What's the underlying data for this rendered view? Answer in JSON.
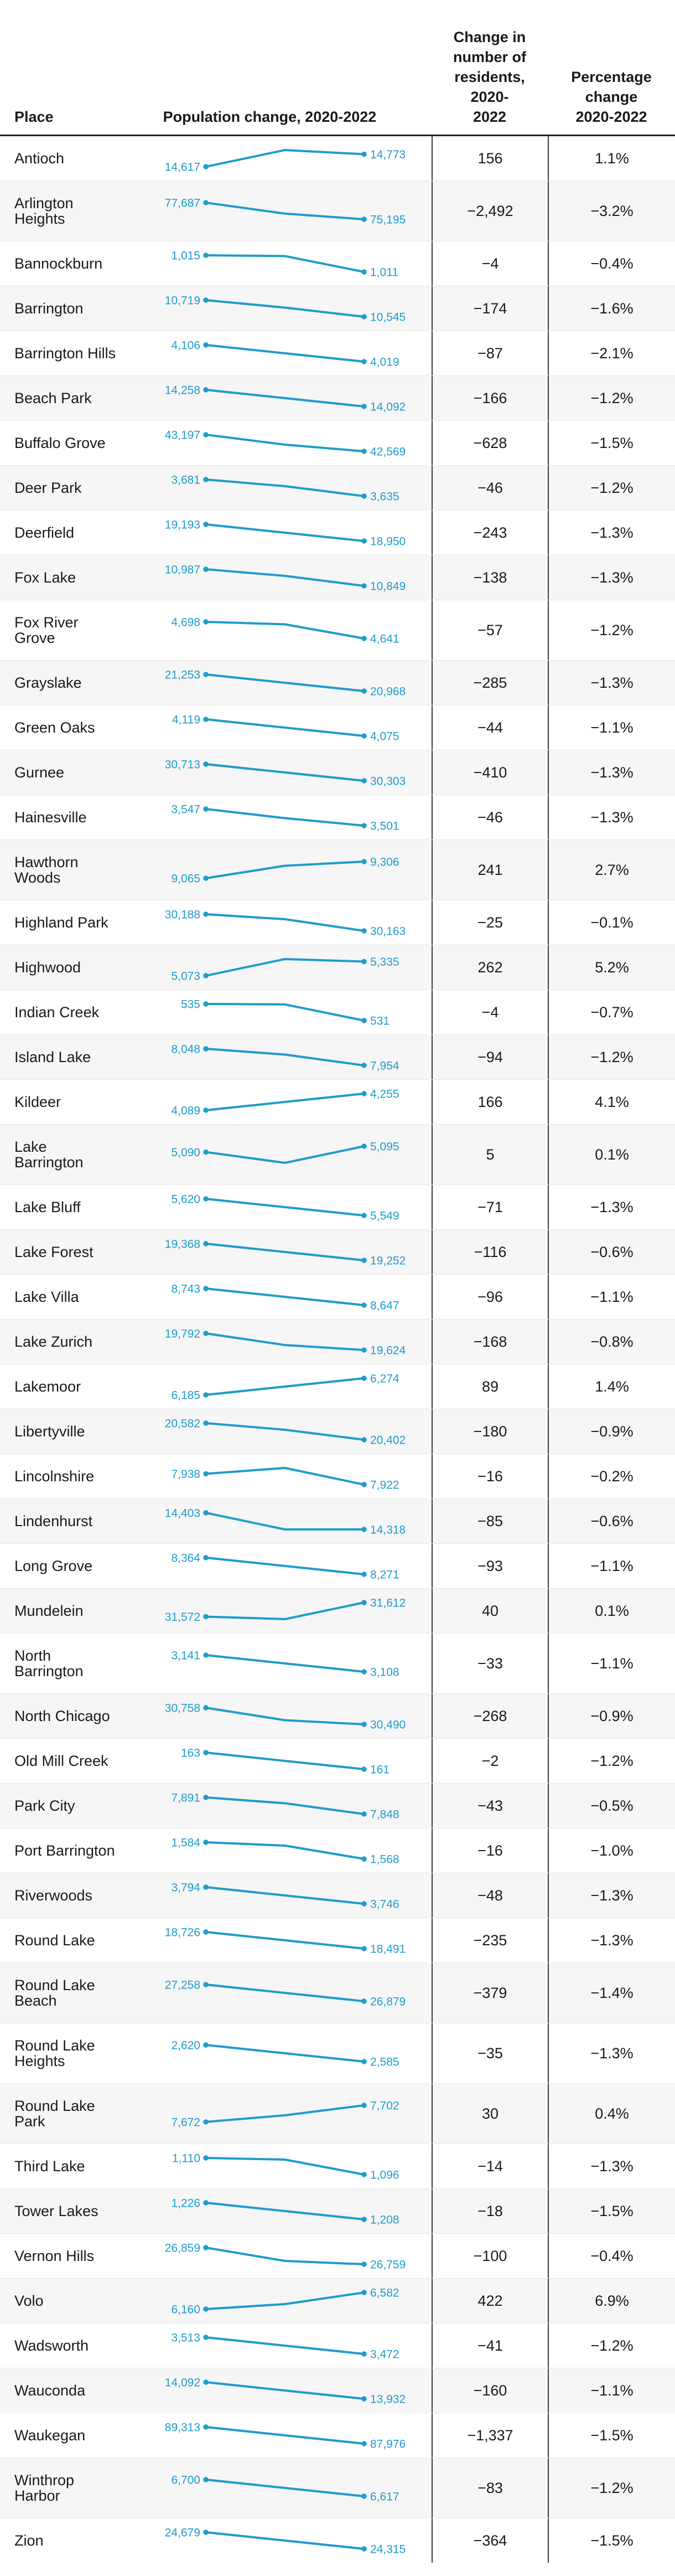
{
  "header": {
    "col_place": "Place",
    "col_chart": "Population change, 2020-2022",
    "col_change": "Change in\nnumber of\nresidents,\n2020-\n2022",
    "col_pct": "Percentage\nchange\n2020-2022"
  },
  "colors": {
    "accent": "#1e9ccd",
    "zebra_row": "#f6f6f6",
    "row_separator": "#e8e8e8",
    "column_divider": "#3a3a3a",
    "header_border": "#222222",
    "text": "#1a1a1a"
  },
  "chart_data": {
    "type": "table",
    "columns": [
      "Place",
      "Population change, 2020-2022",
      "Change in number of residents, 2020-2022",
      "Percentage change 2020-2022"
    ],
    "sparkline_x": [
      "2020",
      "2021",
      "2022"
    ],
    "sparkline_note": "spark_shape values are normalized vertical positions of the 3 line points (0 = top of band, 1 = bottom); only 2020 and 2022 endpoints are labeled",
    "rows": [
      {
        "place": "Antioch",
        "pop_2020": "14,617",
        "pop_2022": "14,773",
        "change": "156",
        "pct": "1.1%",
        "spark_shape": [
          1,
          0,
          0.25
        ]
      },
      {
        "place": "Arlington\nHeights",
        "pop_2020": "77,687",
        "pop_2022": "75,195",
        "change": "−2,492",
        "pct": "−3.2%",
        "spark_shape": [
          0,
          0.66,
          1
        ]
      },
      {
        "place": "Bannockburn",
        "pop_2020": "1,015",
        "pop_2022": "1,011",
        "change": "−4",
        "pct": "−0.4%",
        "spark_shape": [
          0,
          0.05,
          1
        ]
      },
      {
        "place": "Barrington",
        "pop_2020": "10,719",
        "pop_2022": "10,545",
        "change": "−174",
        "pct": "−1.6%",
        "spark_shape": [
          0,
          0.45,
          1
        ]
      },
      {
        "place": "Barrington Hills",
        "pop_2020": "4,106",
        "pop_2022": "4,019",
        "change": "−87",
        "pct": "−2.1%",
        "spark_shape": [
          0,
          0.5,
          1
        ]
      },
      {
        "place": "Beach Park",
        "pop_2020": "14,258",
        "pop_2022": "14,092",
        "change": "−166",
        "pct": "−1.2%",
        "spark_shape": [
          0,
          0.5,
          1
        ]
      },
      {
        "place": "Buffalo Grove",
        "pop_2020": "43,197",
        "pop_2022": "42,569",
        "change": "−628",
        "pct": "−1.5%",
        "spark_shape": [
          0,
          0.6,
          1
        ]
      },
      {
        "place": "Deer Park",
        "pop_2020": "3,681",
        "pop_2022": "3,635",
        "change": "−46",
        "pct": "−1.2%",
        "spark_shape": [
          0,
          0.4,
          1
        ]
      },
      {
        "place": "Deerfield",
        "pop_2020": "19,193",
        "pop_2022": "18,950",
        "change": "−243",
        "pct": "−1.3%",
        "spark_shape": [
          0,
          0.5,
          1
        ]
      },
      {
        "place": "Fox Lake",
        "pop_2020": "10,987",
        "pop_2022": "10,849",
        "change": "−138",
        "pct": "−1.3%",
        "spark_shape": [
          0,
          0.4,
          1
        ]
      },
      {
        "place": "Fox River\nGrove",
        "pop_2020": "4,698",
        "pop_2022": "4,641",
        "change": "−57",
        "pct": "−1.2%",
        "spark_shape": [
          0,
          0.15,
          1
        ]
      },
      {
        "place": "Grayslake",
        "pop_2020": "21,253",
        "pop_2022": "20,968",
        "change": "−285",
        "pct": "−1.3%",
        "spark_shape": [
          0,
          0.5,
          1
        ]
      },
      {
        "place": "Green Oaks",
        "pop_2020": "4,119",
        "pop_2022": "4,075",
        "change": "−44",
        "pct": "−1.1%",
        "spark_shape": [
          0,
          0.5,
          1
        ]
      },
      {
        "place": "Gurnee",
        "pop_2020": "30,713",
        "pop_2022": "30,303",
        "change": "−410",
        "pct": "−1.3%",
        "spark_shape": [
          0,
          0.5,
          1
        ]
      },
      {
        "place": "Hainesville",
        "pop_2020": "3,547",
        "pop_2022": "3,501",
        "change": "−46",
        "pct": "−1.3%",
        "spark_shape": [
          0,
          0.55,
          1
        ]
      },
      {
        "place": "Hawthorn\nWoods",
        "pop_2020": "9,065",
        "pop_2022": "9,306",
        "change": "241",
        "pct": "2.7%",
        "spark_shape": [
          1,
          0.25,
          0
        ]
      },
      {
        "place": "Highland Park",
        "pop_2020": "30,188",
        "pop_2022": "30,163",
        "change": "−25",
        "pct": "−0.1%",
        "spark_shape": [
          0,
          0.3,
          1
        ]
      },
      {
        "place": "Highwood",
        "pop_2020": "5,073",
        "pop_2022": "5,335",
        "change": "262",
        "pct": "5.2%",
        "spark_shape": [
          1,
          0,
          0.15
        ]
      },
      {
        "place": "Indian Creek",
        "pop_2020": "535",
        "pop_2022": "531",
        "change": "−4",
        "pct": "−0.7%",
        "spark_shape": [
          0,
          0.03,
          1
        ]
      },
      {
        "place": "Island Lake",
        "pop_2020": "8,048",
        "pop_2022": "7,954",
        "change": "−94",
        "pct": "−1.2%",
        "spark_shape": [
          0,
          0.35,
          1
        ]
      },
      {
        "place": "Kildeer",
        "pop_2020": "4,089",
        "pop_2022": "4,255",
        "change": "166",
        "pct": "4.1%",
        "spark_shape": [
          1,
          0.5,
          0
        ]
      },
      {
        "place": "Lake\nBarrington",
        "pop_2020": "5,090",
        "pop_2022": "5,095",
        "change": "5",
        "pct": "0.1%",
        "spark_shape": [
          0.35,
          1,
          0
        ]
      },
      {
        "place": "Lake Bluff",
        "pop_2020": "5,620",
        "pop_2022": "5,549",
        "change": "−71",
        "pct": "−1.3%",
        "spark_shape": [
          0,
          0.5,
          1
        ]
      },
      {
        "place": "Lake Forest",
        "pop_2020": "19,368",
        "pop_2022": "19,252",
        "change": "−116",
        "pct": "−0.6%",
        "spark_shape": [
          0,
          0.5,
          1
        ]
      },
      {
        "place": "Lake Villa",
        "pop_2020": "8,743",
        "pop_2022": "8,647",
        "change": "−96",
        "pct": "−1.1%",
        "spark_shape": [
          0,
          0.5,
          1
        ]
      },
      {
        "place": "Lake Zurich",
        "pop_2020": "19,792",
        "pop_2022": "19,624",
        "change": "−168",
        "pct": "−0.8%",
        "spark_shape": [
          0,
          0.7,
          1
        ]
      },
      {
        "place": "Lakemoor",
        "pop_2020": "6,185",
        "pop_2022": "6,274",
        "change": "89",
        "pct": "1.4%",
        "spark_shape": [
          1,
          0.5,
          0
        ]
      },
      {
        "place": "Libertyville",
        "pop_2020": "20,582",
        "pop_2022": "20,402",
        "change": "−180",
        "pct": "−0.9%",
        "spark_shape": [
          0,
          0.4,
          1
        ]
      },
      {
        "place": "Lincolnshire",
        "pop_2020": "7,938",
        "pop_2022": "7,922",
        "change": "−16",
        "pct": "−0.2%",
        "spark_shape": [
          0.35,
          0,
          1
        ]
      },
      {
        "place": "Lindenhurst",
        "pop_2020": "14,403",
        "pop_2022": "14,318",
        "change": "−85",
        "pct": "−0.6%",
        "spark_shape": [
          0,
          1,
          1
        ]
      },
      {
        "place": "Long Grove",
        "pop_2020": "8,364",
        "pop_2022": "8,271",
        "change": "−93",
        "pct": "−1.1%",
        "spark_shape": [
          0,
          0.5,
          1
        ]
      },
      {
        "place": "Mundelein",
        "pop_2020": "31,572",
        "pop_2022": "31,612",
        "change": "40",
        "pct": "0.1%",
        "spark_shape": [
          0.85,
          1,
          0
        ]
      },
      {
        "place": "North\nBarrington",
        "pop_2020": "3,141",
        "pop_2022": "3,108",
        "change": "−33",
        "pct": "−1.1%",
        "spark_shape": [
          0,
          0.5,
          1
        ]
      },
      {
        "place": "North Chicago",
        "pop_2020": "30,758",
        "pop_2022": "30,490",
        "change": "−268",
        "pct": "−0.9%",
        "spark_shape": [
          0,
          0.75,
          1
        ]
      },
      {
        "place": "Old Mill Creek",
        "pop_2020": "163",
        "pop_2022": "161",
        "change": "−2",
        "pct": "−1.2%",
        "spark_shape": [
          0,
          0.5,
          1
        ]
      },
      {
        "place": "Park City",
        "pop_2020": "7,891",
        "pop_2022": "7,848",
        "change": "−43",
        "pct": "−0.5%",
        "spark_shape": [
          0,
          0.35,
          1
        ]
      },
      {
        "place": "Port Barrington",
        "pop_2020": "1,584",
        "pop_2022": "1,568",
        "change": "−16",
        "pct": "−1.0%",
        "spark_shape": [
          0,
          0.2,
          1
        ]
      },
      {
        "place": "Riverwoods",
        "pop_2020": "3,794",
        "pop_2022": "3,746",
        "change": "−48",
        "pct": "−1.3%",
        "spark_shape": [
          0,
          0.5,
          1
        ]
      },
      {
        "place": "Round Lake",
        "pop_2020": "18,726",
        "pop_2022": "18,491",
        "change": "−235",
        "pct": "−1.3%",
        "spark_shape": [
          0,
          0.5,
          1
        ]
      },
      {
        "place": "Round Lake\nBeach",
        "pop_2020": "27,258",
        "pop_2022": "26,879",
        "change": "−379",
        "pct": "−1.4%",
        "spark_shape": [
          0,
          0.5,
          1
        ]
      },
      {
        "place": "Round Lake\nHeights",
        "pop_2020": "2,620",
        "pop_2022": "2,585",
        "change": "−35",
        "pct": "−1.3%",
        "spark_shape": [
          0,
          0.5,
          1
        ]
      },
      {
        "place": "Round Lake\nPark",
        "pop_2020": "7,672",
        "pop_2022": "7,702",
        "change": "30",
        "pct": "0.4%",
        "spark_shape": [
          1,
          0.6,
          0
        ]
      },
      {
        "place": "Third Lake",
        "pop_2020": "1,110",
        "pop_2022": "1,096",
        "change": "−14",
        "pct": "−1.3%",
        "spark_shape": [
          0,
          0.1,
          1
        ]
      },
      {
        "place": "Tower Lakes",
        "pop_2020": "1,226",
        "pop_2022": "1,208",
        "change": "−18",
        "pct": "−1.5%",
        "spark_shape": [
          0,
          0.5,
          1
        ]
      },
      {
        "place": "Vernon Hills",
        "pop_2020": "26,859",
        "pop_2022": "26,759",
        "change": "−100",
        "pct": "−0.4%",
        "spark_shape": [
          0,
          0.8,
          1
        ]
      },
      {
        "place": "Volo",
        "pop_2020": "6,160",
        "pop_2022": "6,582",
        "change": "422",
        "pct": "6.9%",
        "spark_shape": [
          1,
          0.7,
          0
        ]
      },
      {
        "place": "Wadsworth",
        "pop_2020": "3,513",
        "pop_2022": "3,472",
        "change": "−41",
        "pct": "−1.2%",
        "spark_shape": [
          0,
          0.5,
          1
        ]
      },
      {
        "place": "Wauconda",
        "pop_2020": "14,092",
        "pop_2022": "13,932",
        "change": "−160",
        "pct": "−1.1%",
        "spark_shape": [
          0,
          0.5,
          1
        ]
      },
      {
        "place": "Waukegan",
        "pop_2020": "89,313",
        "pop_2022": "87,976",
        "change": "−1,337",
        "pct": "−1.5%",
        "spark_shape": [
          0,
          0.5,
          1
        ]
      },
      {
        "place": "Winthrop\nHarbor",
        "pop_2020": "6,700",
        "pop_2022": "6,617",
        "change": "−83",
        "pct": "−1.2%",
        "spark_shape": [
          0,
          0.5,
          1
        ]
      },
      {
        "place": "Zion",
        "pop_2020": "24,679",
        "pop_2022": "24,315",
        "change": "−364",
        "pct": "−1.5%",
        "spark_shape": [
          0,
          0.5,
          1
        ]
      }
    ]
  }
}
